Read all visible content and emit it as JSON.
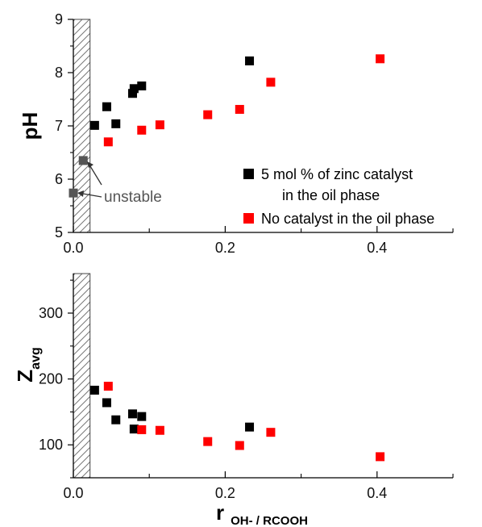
{
  "chart_data": [
    {
      "type": "scatter",
      "panel": "top",
      "ylabel": "pH",
      "xlim": [
        0,
        0.5
      ],
      "ylim": [
        5,
        9
      ],
      "x_ticks": [
        "0.0",
        "0.2",
        "0.4"
      ],
      "y_ticks": [
        "5",
        "6",
        "7",
        "8",
        "9"
      ],
      "series": [
        {
          "name": "5 mol % of zinc catalyst in the oil phase",
          "legend_lines": [
            "5 mol % of zinc catalyst",
            "in the oil phase"
          ],
          "color": "#000000",
          "points": [
            [
              0.028,
              7.01
            ],
            [
              0.044,
              7.36
            ],
            [
              0.056,
              7.04
            ],
            [
              0.078,
              7.61
            ],
            [
              0.08,
              7.7
            ],
            [
              0.09,
              7.75
            ],
            [
              0.232,
              8.22
            ]
          ]
        },
        {
          "name": "No catalyst in the oil phase",
          "legend_lines": [
            "No catalyst in the oil phase"
          ],
          "color": "#ff0000",
          "points": [
            [
              0.046,
              6.7
            ],
            [
              0.09,
              6.92
            ],
            [
              0.114,
              7.02
            ],
            [
              0.177,
              7.21
            ],
            [
              0.219,
              7.31
            ],
            [
              0.26,
              7.82
            ],
            [
              0.404,
              8.26
            ]
          ]
        },
        {
          "name": "unstable",
          "color": "#555555",
          "points": [
            [
              0.0,
              5.74
            ],
            [
              0.013,
              6.35
            ]
          ]
        }
      ],
      "annotation": "unstable",
      "hatched_region": [
        0,
        0.022
      ]
    },
    {
      "type": "scatter",
      "panel": "bottom",
      "ylabel": "Z",
      "ylabel_sub": "avg",
      "xlabel": "r",
      "xlabel_sub": "OH- / RCOOH",
      "xlim": [
        0,
        0.5
      ],
      "ylim": [
        50,
        360
      ],
      "x_ticks": [
        "0.0",
        "0.2",
        "0.4"
      ],
      "y_ticks": [
        "100",
        "200",
        "300"
      ],
      "series": [
        {
          "color": "#000000",
          "points": [
            [
              0.028,
              183
            ],
            [
              0.044,
              164
            ],
            [
              0.056,
              138
            ],
            [
              0.078,
              147
            ],
            [
              0.08,
              124
            ],
            [
              0.09,
              143
            ],
            [
              0.232,
              127
            ]
          ]
        },
        {
          "color": "#ff0000",
          "points": [
            [
              0.046,
              189
            ],
            [
              0.09,
              123
            ],
            [
              0.114,
              122
            ],
            [
              0.177,
              105
            ],
            [
              0.219,
              99
            ],
            [
              0.26,
              119
            ],
            [
              0.404,
              82
            ]
          ]
        }
      ],
      "hatched_region": [
        0,
        0.022
      ]
    }
  ]
}
